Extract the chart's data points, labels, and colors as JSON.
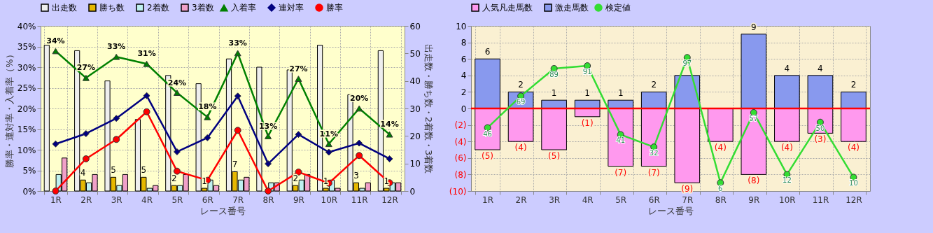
{
  "chart_data": [
    {
      "type": "bar",
      "categories": [
        "1R",
        "2R",
        "3R",
        "4R",
        "5R",
        "6R",
        "7R",
        "8R",
        "9R",
        "10R",
        "11R",
        "12R"
      ],
      "xlabel": "レース番号",
      "ylabel": "勝率・連対率・入着率（%）",
      "y2label": "出走数・勝ち数・2着数・3着数",
      "ylim": [
        0,
        40
      ],
      "yticks": [
        {
          "value": 0,
          "label": "0%"
        },
        {
          "value": 5,
          "label": "5%"
        },
        {
          "value": 10,
          "label": "10%"
        },
        {
          "value": 15,
          "label": "15%"
        },
        {
          "value": 20,
          "label": "20%"
        },
        {
          "value": 25,
          "label": "25%"
        },
        {
          "value": 30,
          "label": "30%"
        },
        {
          "value": 35,
          "label": "35%"
        },
        {
          "value": 40,
          "label": "40%"
        }
      ],
      "y2lim": [
        0,
        60
      ],
      "y2ticks": [
        0,
        10,
        20,
        30,
        40,
        50,
        60
      ],
      "grid": true,
      "legend": "top",
      "series": [
        {
          "name": "出走数",
          "axis": "y2",
          "color": "#eeeeee",
          "values": [
            53,
            51,
            40,
            26,
            42,
            39,
            48,
            45,
            44,
            53,
            35,
            51
          ]
        },
        {
          "name": "勝ち数",
          "axis": "y2",
          "color": "#e6b800",
          "values": [
            0,
            4,
            5,
            5,
            2,
            1,
            7,
            0,
            2,
            1,
            3,
            1
          ],
          "value_labels": [
            null,
            "4",
            "5",
            "5",
            "2",
            "1",
            "7",
            null,
            "2",
            "1",
            "3",
            "1"
          ]
        },
        {
          "name": "2着数",
          "axis": "y2",
          "color": "#bff0f0",
          "values": [
            6,
            3,
            2,
            1,
            2,
            4,
            4,
            3,
            4,
            4,
            1,
            3
          ]
        },
        {
          "name": "3着数",
          "axis": "y2",
          "color": "#f0a0c8",
          "values": [
            12,
            6,
            6,
            2,
            6,
            2,
            5,
            3,
            6,
            1,
            3,
            3
          ]
        },
        {
          "name": "入着率",
          "type": "line",
          "color": "#008000",
          "marker": "triangle",
          "values": [
            33.9,
            27.4,
            32.5,
            30.8,
            23.8,
            17.9,
            33.4,
            13.3,
            27.2,
            11.4,
            20.0,
            13.7
          ],
          "value_labels": [
            "34%",
            "27%",
            "33%",
            "31%",
            "24%",
            "18%",
            "33%",
            "13%",
            "27%",
            "11%",
            "20%",
            "14%"
          ]
        },
        {
          "name": "連対率",
          "type": "line",
          "color": "#000080",
          "marker": "diamond",
          "values": [
            11.4,
            13.9,
            17.6,
            23.1,
            9.5,
            12.9,
            23.0,
            6.6,
            13.7,
            9.4,
            11.6,
            7.8
          ]
        },
        {
          "name": "勝率",
          "type": "line",
          "color": "#ff0000",
          "marker": "circle",
          "values": [
            0,
            7.8,
            12.5,
            19.2,
            4.8,
            2.6,
            14.7,
            0,
            4.6,
            1.9,
            8.6,
            2.0
          ]
        }
      ]
    },
    {
      "type": "bar",
      "stacked": true,
      "categories": [
        "1R",
        "2R",
        "3R",
        "4R",
        "5R",
        "6R",
        "7R",
        "8R",
        "9R",
        "10R",
        "11R",
        "12R"
      ],
      "xlabel": "レース番号",
      "ylim": [
        -10,
        10
      ],
      "yticks": [
        {
          "value": -10,
          "label": "(10)"
        },
        {
          "value": -8,
          "label": "(8)"
        },
        {
          "value": -6,
          "label": "(6)"
        },
        {
          "value": -4,
          "label": "(4)"
        },
        {
          "value": -2,
          "label": "(2)"
        },
        0,
        2,
        4,
        6,
        8,
        10
      ],
      "y2lim": [
        0,
        120
      ],
      "grid": true,
      "legend": "top",
      "ref_lines": [
        {
          "axis": "y",
          "value": 0,
          "color": "#ff0000"
        }
      ],
      "series": [
        {
          "name": "人気凡走馬数",
          "color": "#ff99ee",
          "values": [
            -5,
            -4,
            -5,
            -1,
            -7,
            -7,
            -9,
            -4,
            -8,
            -4,
            -3,
            -4
          ],
          "value_labels": [
            "(5)",
            "(4)",
            "(5)",
            "(1)",
            "(7)",
            "(7)",
            "(9)",
            "(4)",
            "(8)",
            "(4)",
            "(3)",
            "(4)"
          ]
        },
        {
          "name": "激走馬数",
          "color": "#8899ee",
          "values": [
            6,
            2,
            1,
            1,
            1,
            2,
            4,
            0,
            9,
            4,
            4,
            2
          ],
          "value_labels": [
            "6",
            "2",
            "1",
            "1",
            "1",
            "2",
            null,
            null,
            "9",
            "4",
            "4",
            "2"
          ]
        },
        {
          "name": "検定値",
          "type": "line",
          "axis": "y2",
          "color": "#33dd33",
          "marker": "circle",
          "values": [
            46,
            69,
            89,
            91,
            41,
            32,
            97,
            6,
            57,
            12,
            50,
            10
          ],
          "value_labels": [
            "46",
            "69",
            "89",
            "91",
            "41",
            "32",
            "97",
            "6",
            "57",
            "12",
            "50",
            "10"
          ]
        }
      ]
    }
  ]
}
